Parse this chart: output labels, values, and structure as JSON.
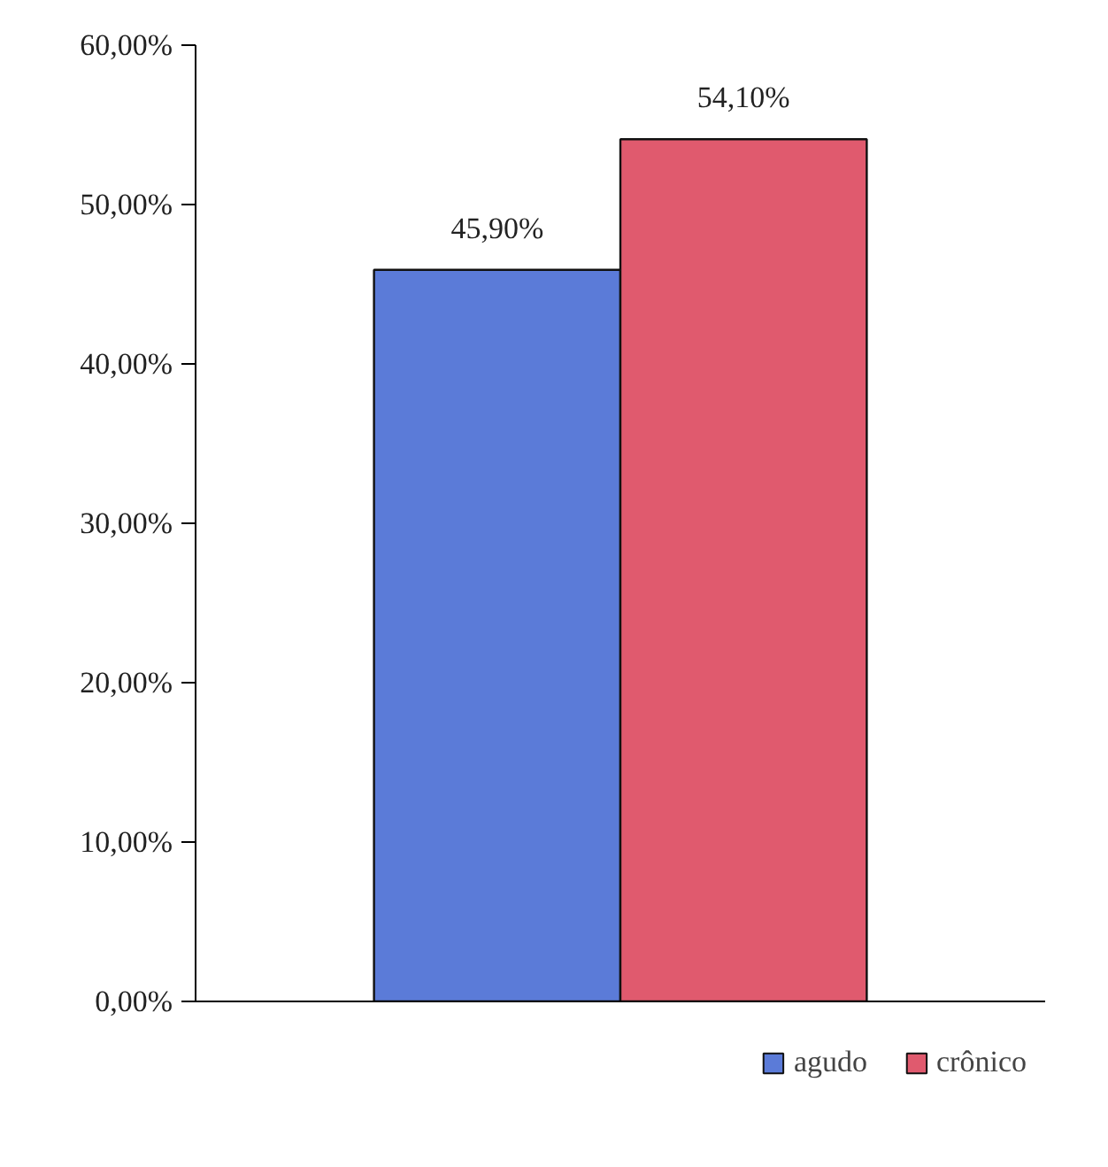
{
  "chart_data": {
    "type": "bar",
    "categories": [
      null
    ],
    "series": [
      {
        "name": "agudo",
        "color": "#5b7bd8",
        "values": [
          45.9
        ],
        "value_labels": [
          "45,90%"
        ]
      },
      {
        "name": "crônico",
        "color": "#e05a6e",
        "values": [
          54.1
        ],
        "value_labels": [
          "54,10%"
        ]
      }
    ],
    "ylim": [
      0,
      60
    ],
    "yticks": [
      {
        "value": 0,
        "label": "0,00%"
      },
      {
        "value": 10,
        "label": "10,00%"
      },
      {
        "value": 20,
        "label": "20,00%"
      },
      {
        "value": 30,
        "label": "30,00%"
      },
      {
        "value": 40,
        "label": "40,00%"
      },
      {
        "value": 50,
        "label": "50,00%"
      },
      {
        "value": 60,
        "label": "60,00%"
      }
    ],
    "grid": false,
    "legend": "bottom right"
  }
}
